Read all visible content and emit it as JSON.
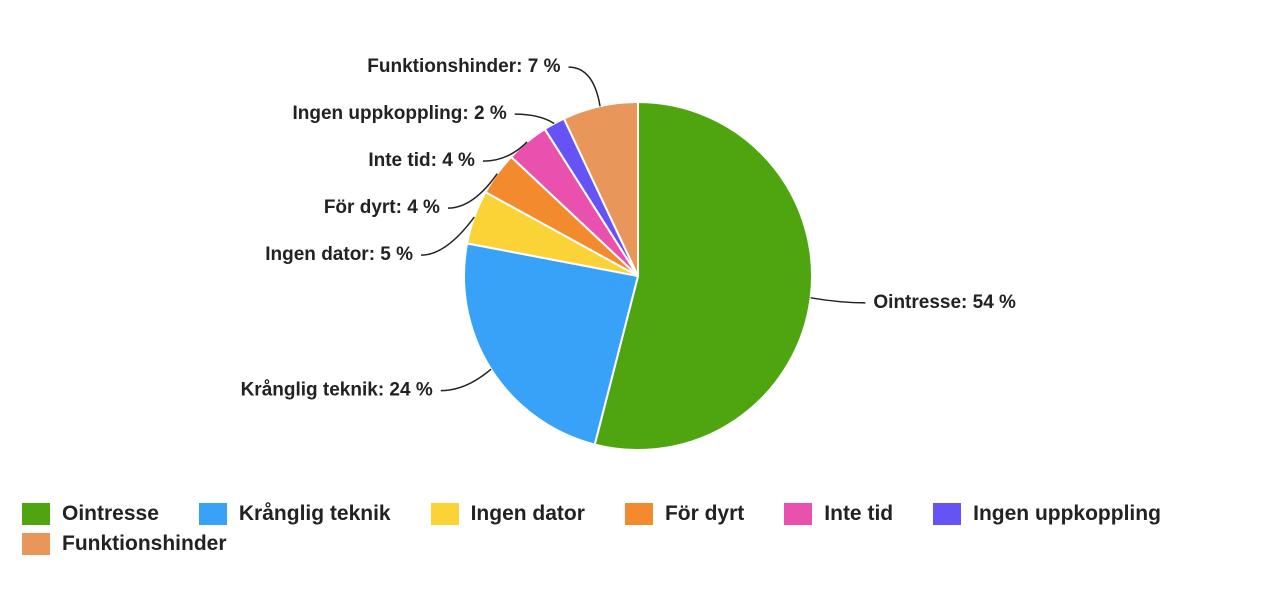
{
  "chart_data": {
    "type": "pie",
    "categories": [
      "Ointresse",
      "Krånglig teknik",
      "Ingen dator",
      "För dyrt",
      "Inte tid",
      "Ingen uppkoppling",
      "Funktionshinder"
    ],
    "values": [
      54,
      24,
      5,
      4,
      4,
      2,
      7
    ],
    "value_labels": [
      "Ointresse: 54 %",
      "Krånglig teknik: 24 %",
      "Ingen dator: 5 %",
      "För dyrt: 4 %",
      "Inte tid: 4 %",
      "Ingen uppkoppling: 2 %",
      "Funktionshinder: 7 %"
    ],
    "colors": [
      "#4fa50f",
      "#37a2f7",
      "#fcd336",
      "#f38b2e",
      "#ea50ad",
      "#6553f6",
      "#e8965a"
    ],
    "legend": "bottom"
  }
}
